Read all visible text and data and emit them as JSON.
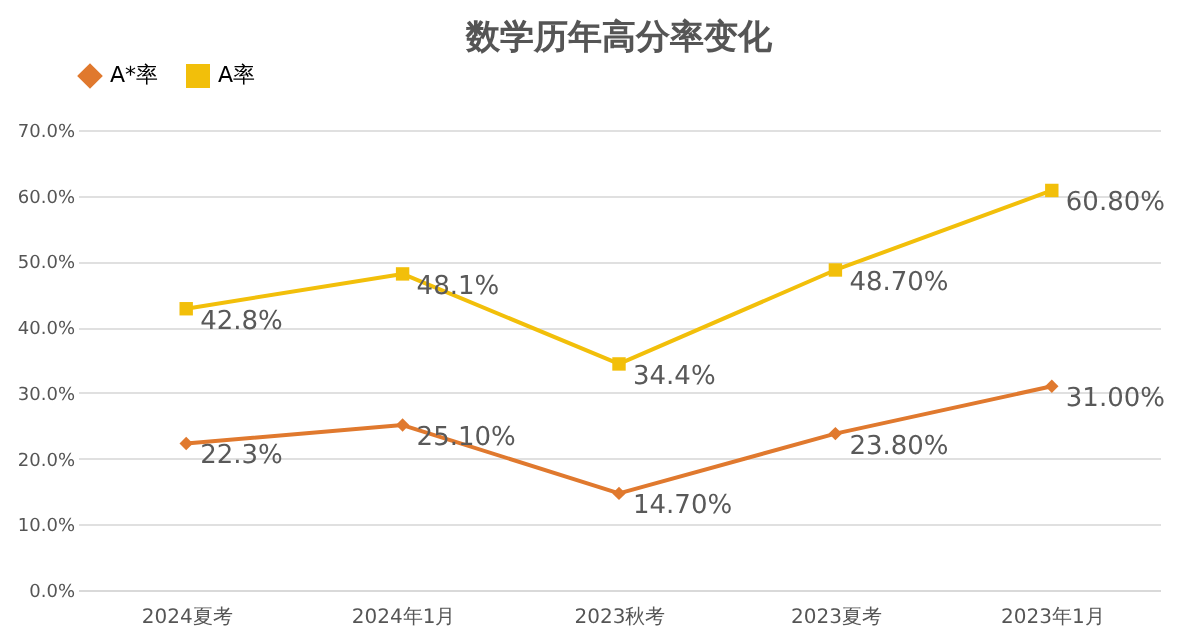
{
  "chart_data": {
    "type": "line",
    "title": "数学历年高分率变化",
    "categories": [
      "2024夏考",
      "2024年1月",
      "2023秋考",
      "2023夏考",
      "2023年1月"
    ],
    "series": [
      {
        "name": "A*率",
        "color": "#e0792e",
        "marker": "diamond",
        "values": [
          22.3,
          25.1,
          14.7,
          23.8,
          31.0
        ],
        "value_labels": [
          "22.3%",
          "25.10%",
          "14.70%",
          "23.80%",
          "31.00%"
        ]
      },
      {
        "name": "A率",
        "color": "#f2bf0a",
        "marker": "square",
        "values": [
          42.8,
          48.1,
          34.4,
          48.7,
          60.8
        ],
        "value_labels": [
          "42.8%",
          "48.1%",
          "34.4%",
          "48.70%",
          "60.80%"
        ]
      }
    ],
    "ylim": [
      0,
      70
    ],
    "yticks": [
      {
        "value": 0,
        "label": "0.0%"
      },
      {
        "value": 10,
        "label": "10.0%"
      },
      {
        "value": 20,
        "label": "20.0%"
      },
      {
        "value": 30,
        "label": "30.0%"
      },
      {
        "value": 40,
        "label": "40.0%"
      },
      {
        "value": 50,
        "label": "50.0%"
      },
      {
        "value": 60,
        "label": "60.0%"
      },
      {
        "value": 70,
        "label": "70.0%"
      }
    ],
    "grid": "y",
    "legend": "top",
    "line_style": "solid"
  }
}
